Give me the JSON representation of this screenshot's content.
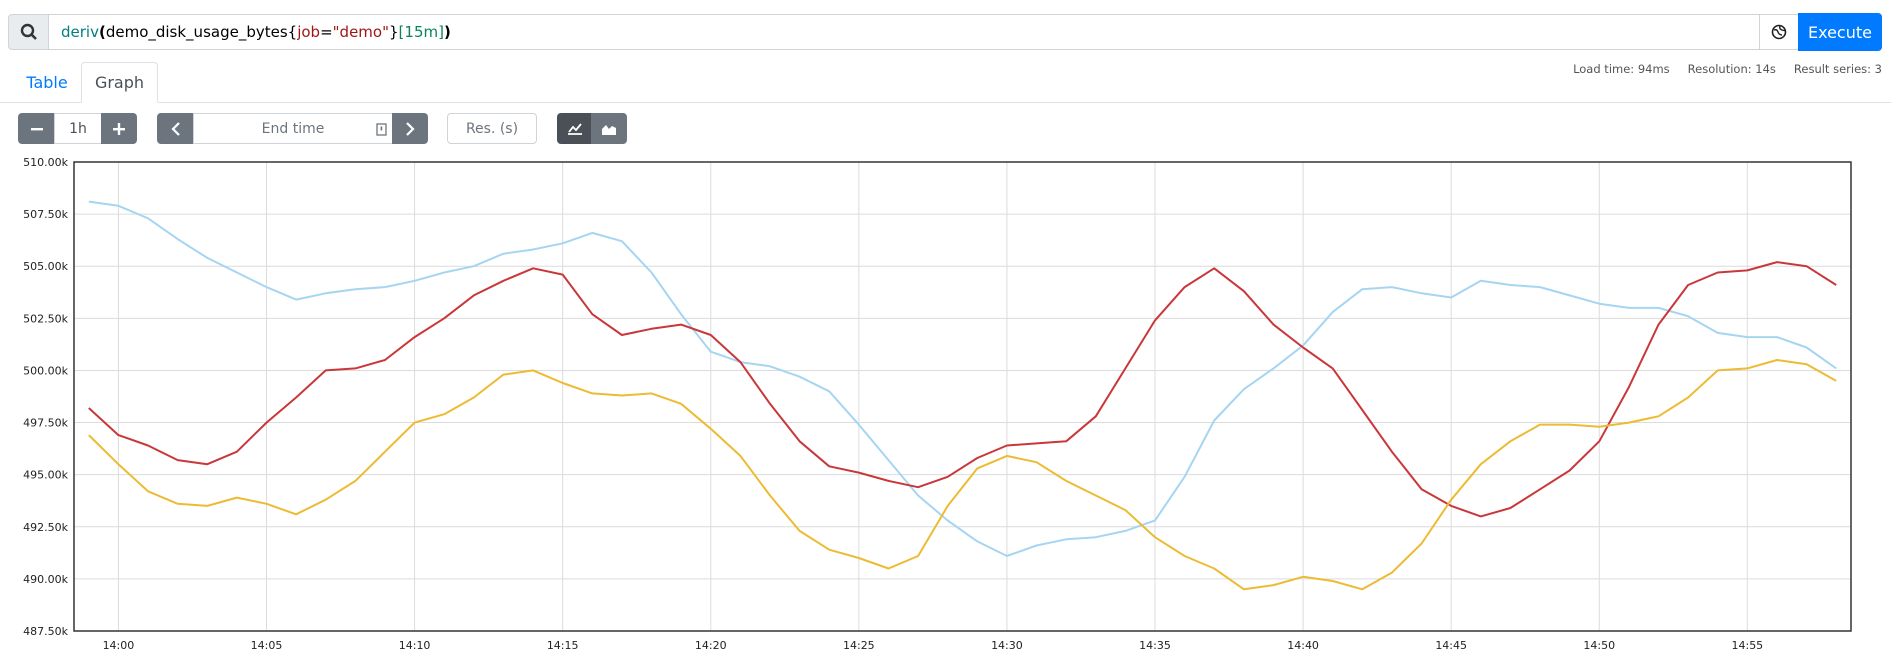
{
  "query": {
    "tokens": [
      "deriv",
      "(",
      "demo_disk_usage_bytes",
      "{",
      "job",
      "=",
      "\"demo\"",
      "}",
      "[15m]",
      ")"
    ]
  },
  "execute": "Execute",
  "tabs": [
    "Table",
    "Graph"
  ],
  "stats": [
    "Load time: 94ms",
    "Resolution: 14s",
    "Result series: 3"
  ],
  "controls": {
    "range": "1h",
    "end_time": "End time",
    "resolution": "Res. (s)"
  },
  "chart_data": {
    "type": "line",
    "x": [
      "13:59",
      "14:00",
      "14:01",
      "14:02",
      "14:03",
      "14:04",
      "14:05",
      "14:06",
      "14:07",
      "14:08",
      "14:09",
      "14:10",
      "14:11",
      "14:12",
      "14:13",
      "14:14",
      "14:15",
      "14:16",
      "14:17",
      "14:18",
      "14:19",
      "14:20",
      "14:21",
      "14:22",
      "14:23",
      "14:24",
      "14:25",
      "14:26",
      "14:27",
      "14:28",
      "14:29",
      "14:30",
      "14:31",
      "14:32",
      "14:33",
      "14:34",
      "14:35",
      "14:36",
      "14:37",
      "14:38",
      "14:39",
      "14:40",
      "14:41",
      "14:42",
      "14:43",
      "14:44",
      "14:45",
      "14:46",
      "14:47",
      "14:48",
      "14:49",
      "14:50",
      "14:51",
      "14:52",
      "14:53",
      "14:54",
      "14:55",
      "14:56",
      "14:57",
      "14:58"
    ],
    "xlim": [
      "13:58:30",
      "14:58:30"
    ],
    "xticks": [
      "14:00",
      "14:05",
      "14:10",
      "14:15",
      "14:20",
      "14:25",
      "14:30",
      "14:35",
      "14:40",
      "14:45",
      "14:50",
      "14:55"
    ],
    "ylim": [
      487500,
      510000
    ],
    "yticks": [
      {
        "value": 487500,
        "label": "487.50k"
      },
      {
        "value": 490000,
        "label": "490.00k"
      },
      {
        "value": 492500,
        "label": "492.50k"
      },
      {
        "value": 495000,
        "label": "495.00k"
      },
      {
        "value": 497500,
        "label": "497.50k"
      },
      {
        "value": 500000,
        "label": "500.00k"
      },
      {
        "value": 502500,
        "label": "502.50k"
      },
      {
        "value": 505000,
        "label": "505.00k"
      },
      {
        "value": 507500,
        "label": "507.50k"
      },
      {
        "value": 510000,
        "label": "510.00k"
      }
    ],
    "grid": true,
    "series": [
      {
        "color": "#a6d5f2",
        "values": [
          508100,
          507900,
          507300,
          506300,
          505400,
          504700,
          504000,
          503400,
          503700,
          503900,
          504000,
          504300,
          504700,
          505000,
          505600,
          505800,
          506100,
          506600,
          506200,
          504700,
          502700,
          500900,
          500400,
          500200,
          499700,
          499000,
          497400,
          495700,
          494000,
          492800,
          491800,
          491100,
          491600,
          491900,
          492000,
          492300,
          492800,
          494900,
          497600,
          499100,
          500100,
          501200,
          502800,
          503900,
          504000,
          503700,
          503500,
          504300,
          504100,
          504000,
          503600,
          503200,
          503000,
          503000,
          502600,
          501800,
          501600,
          501600,
          501100,
          500100
        ]
      },
      {
        "color": "#c9373a",
        "values": [
          498200,
          496900,
          496400,
          495700,
          495500,
          496100,
          497500,
          498700,
          500000,
          500100,
          500500,
          501600,
          502500,
          503600,
          504300,
          504900,
          504600,
          502700,
          501700,
          502000,
          502200,
          501700,
          500400,
          498400,
          496600,
          495400,
          495100,
          494700,
          494400,
          494900,
          495800,
          496400,
          496500,
          496600,
          497800,
          500100,
          502400,
          504000,
          504900,
          503800,
          502200,
          501100,
          500100,
          498100,
          496100,
          494300,
          493500,
          493000,
          493400,
          494300,
          495200,
          496600,
          499200,
          502200,
          504100,
          504700,
          504800,
          505200,
          505000,
          504100
        ]
      },
      {
        "color": "#edbb33",
        "values": [
          496900,
          495500,
          494200,
          493600,
          493500,
          493900,
          493600,
          493100,
          493800,
          494700,
          496100,
          497500,
          497900,
          498700,
          499800,
          500000,
          499400,
          498900,
          498800,
          498900,
          498400,
          497200,
          495900,
          494000,
          492300,
          491400,
          491000,
          490500,
          491100,
          493500,
          495300,
          495900,
          495600,
          494700,
          494000,
          493300,
          492000,
          491100,
          490500,
          489500,
          489700,
          490100,
          489900,
          489500,
          490300,
          491700,
          493800,
          495500,
          496600,
          497400,
          497400,
          497300,
          497500,
          497800,
          498700,
          500000,
          500100,
          500500,
          500300,
          499500
        ]
      }
    ]
  }
}
